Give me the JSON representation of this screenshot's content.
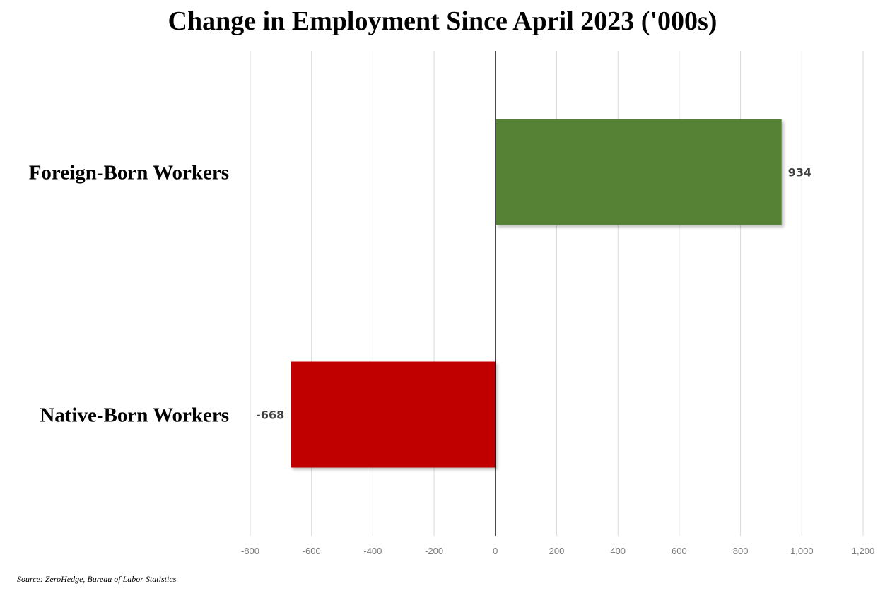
{
  "chart_data": {
    "type": "bar",
    "orientation": "horizontal",
    "title": "Change in Employment Since April 2023 ('000s)",
    "categories": [
      "Foreign-Born Workers",
      "Native-Born Workers"
    ],
    "values": [
      934,
      -668
    ],
    "value_labels": [
      "934",
      "-668"
    ],
    "colors": [
      "#548235",
      "#C00000"
    ],
    "xlim": [
      -800,
      1200
    ],
    "xticks": [
      -800,
      -600,
      -400,
      -200,
      0,
      200,
      400,
      600,
      800,
      1000,
      1200
    ],
    "xtick_labels": [
      "-800",
      "-600",
      "-400",
      "-200",
      "0",
      "200",
      "400",
      "600",
      "800",
      "1,000",
      "1,200"
    ],
    "grid": true,
    "legend": "none"
  },
  "source": "Source: ZeroHedge, Bureau of Labor Statistics"
}
